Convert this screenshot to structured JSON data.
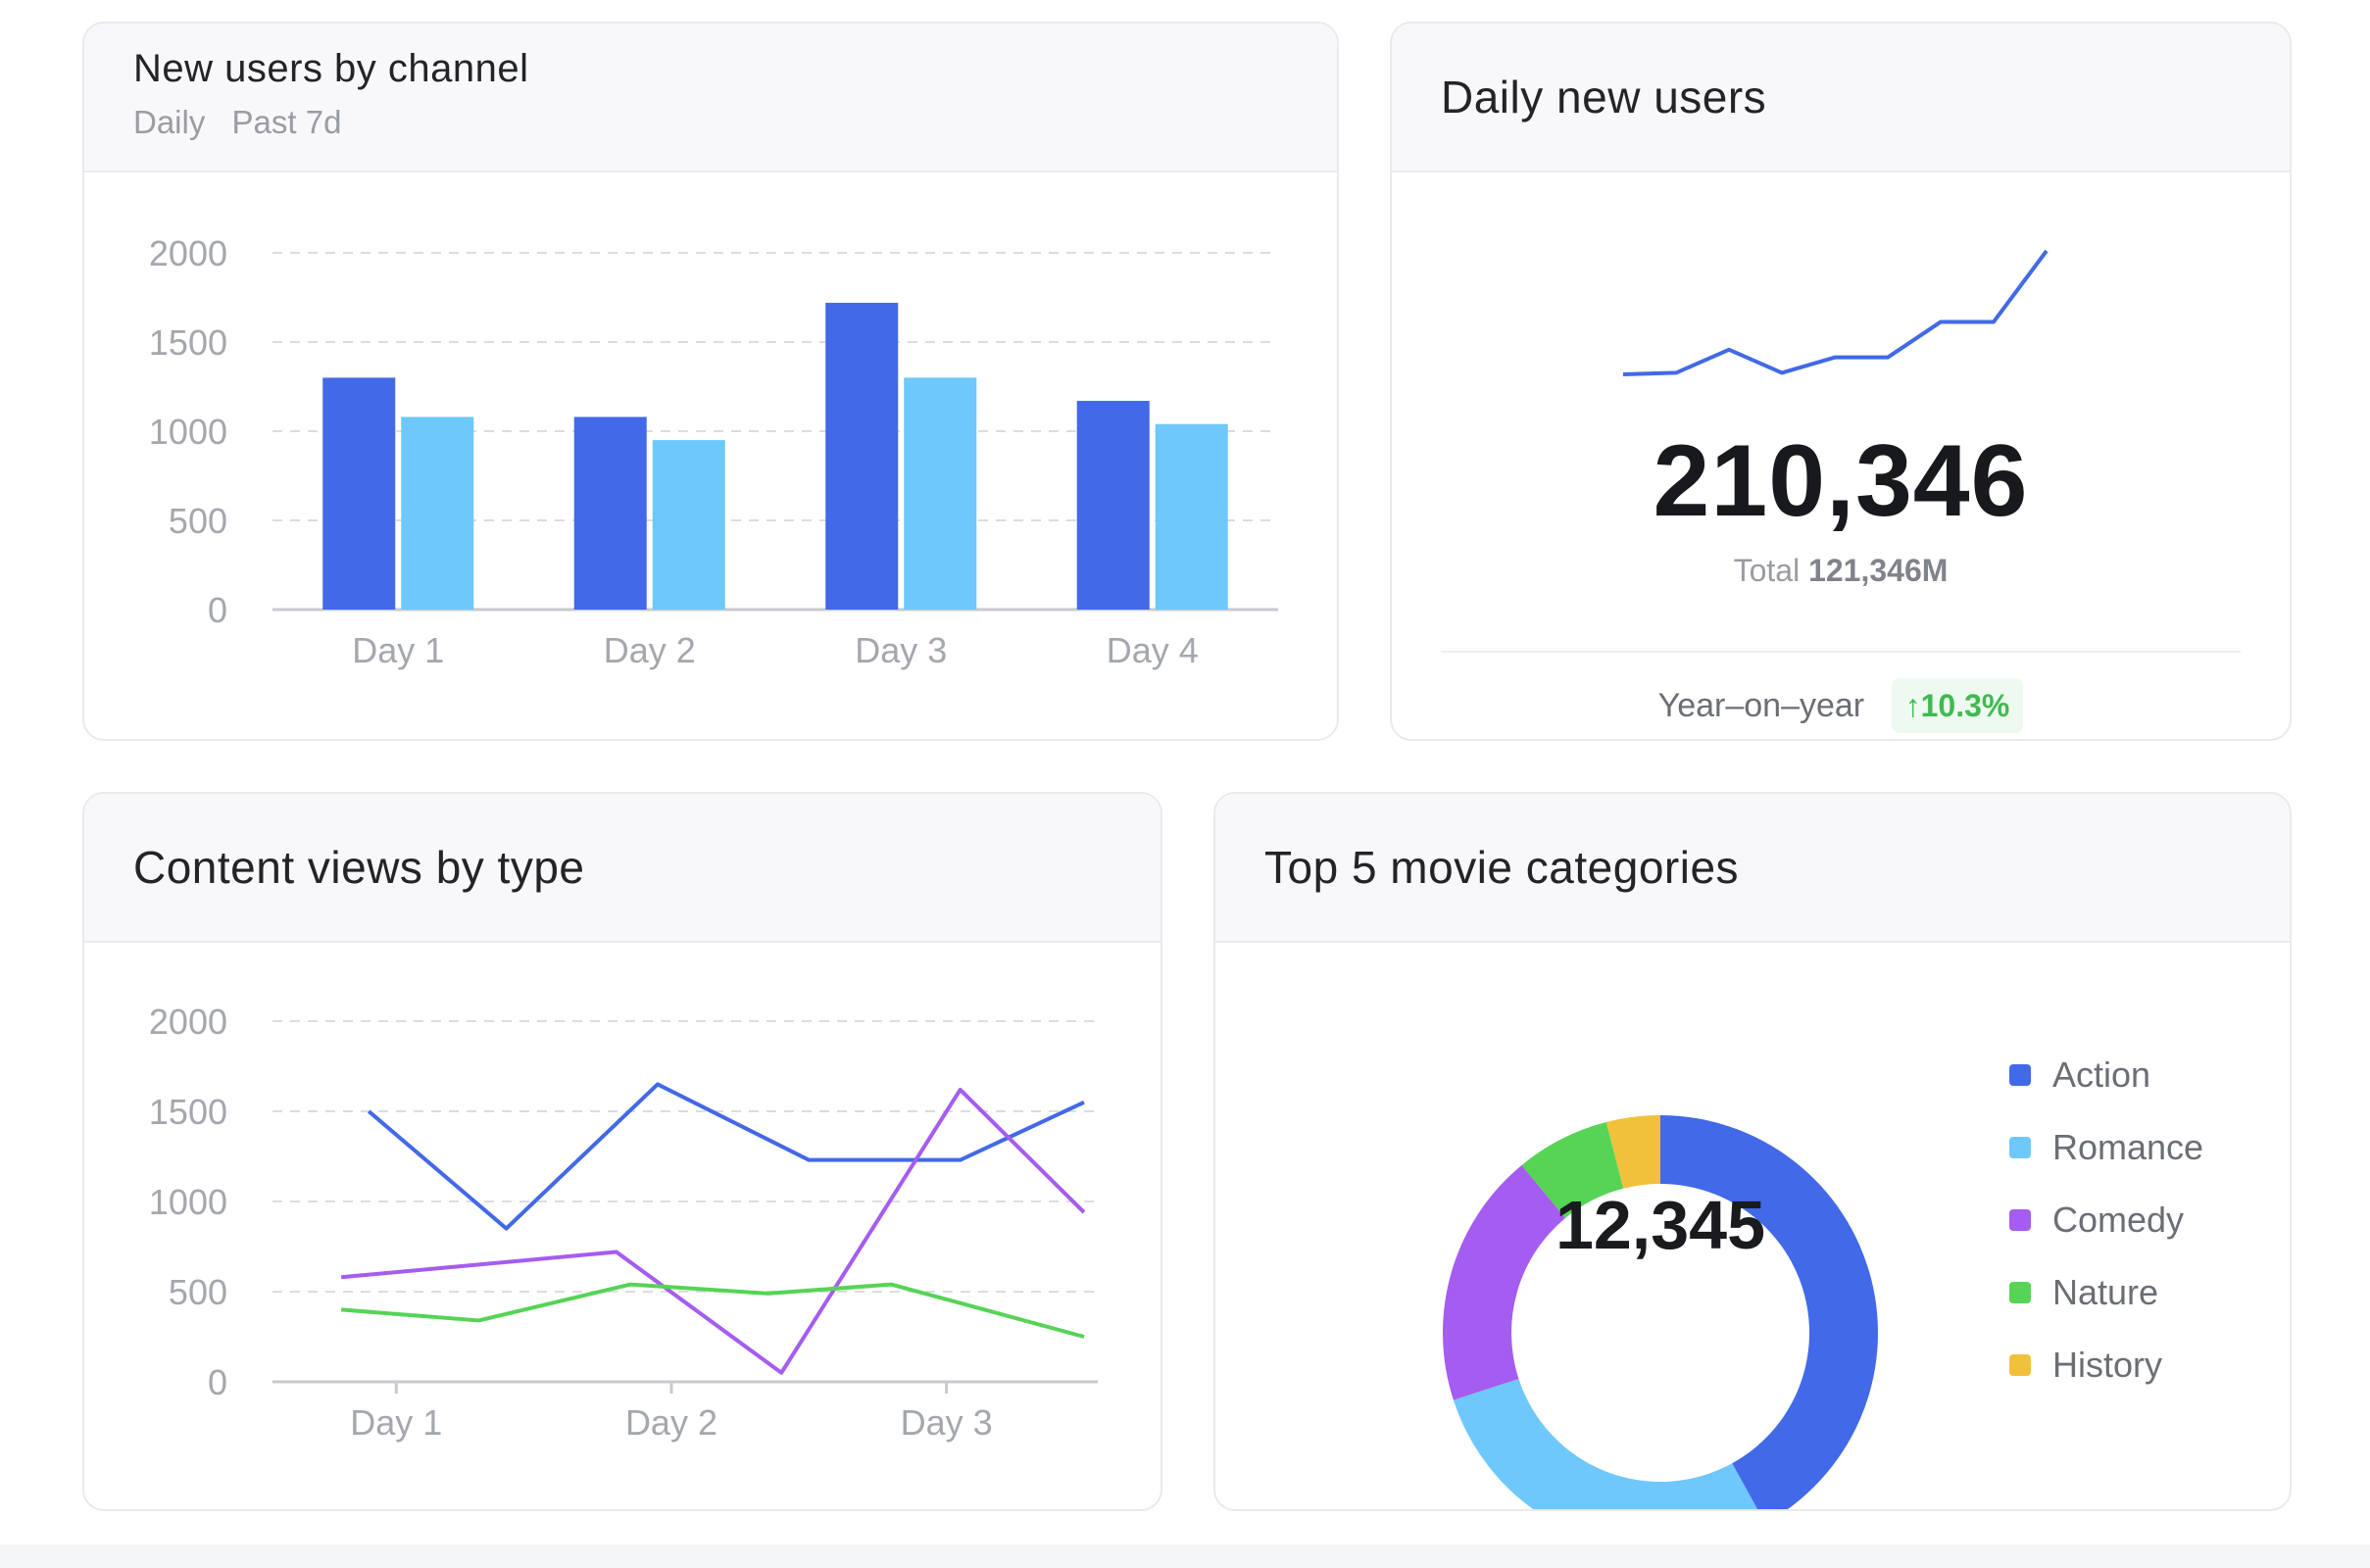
{
  "cards": {
    "channel": {
      "title": "New users by channel",
      "subtitle": [
        "Daily",
        "Past 7d"
      ]
    },
    "daily": {
      "title": "Daily new users",
      "value": "210,346",
      "total_label": "Total",
      "total_value": "121,346M",
      "yoy_label": "Year–on–year",
      "yoy_value": "10.3%"
    },
    "content": {
      "title": "Content views by type"
    },
    "movies": {
      "title": "Top 5 movie categories",
      "center_value": "12,345"
    }
  },
  "colors": {
    "blue": "#4169e8",
    "lightblue": "#6ec8fb",
    "purple": "#a55cf0",
    "green": "#55d455",
    "yellow": "#f2c13c",
    "up": "#3fba4f"
  },
  "chart_data": [
    {
      "type": "bar",
      "categories": [
        "Day 1",
        "Day 2",
        "Day 3",
        "Day 4"
      ],
      "series": [
        {
          "values": [
            1300,
            1080,
            1720,
            1170
          ]
        },
        {
          "values": [
            1080,
            950,
            1300,
            1040
          ]
        }
      ],
      "ylim": [
        0,
        2000
      ],
      "yticks": [
        0,
        500,
        1000,
        1500,
        2000
      ],
      "grid": true
    },
    {
      "type": "line",
      "values": [
        1300,
        1310,
        1460,
        1310,
        1410,
        1410,
        1640,
        1640,
        2100
      ],
      "axes": false
    },
    {
      "type": "line",
      "x_ticks": [
        "Day 1",
        "Day 2",
        "Day 3"
      ],
      "ylim": [
        0,
        2000
      ],
      "yticks": [
        0,
        500,
        1000,
        1500,
        2000
      ],
      "grid": true,
      "series": [
        {
          "color": "blue",
          "x": [
            0.35,
            0.85,
            1.4,
            1.95,
            2.5,
            2.95
          ],
          "y": [
            1500,
            850,
            1650,
            1230,
            1230,
            1550
          ]
        },
        {
          "color": "purple",
          "x": [
            0.25,
            1.25,
            1.85,
            2.5,
            2.95
          ],
          "y": [
            580,
            720,
            50,
            1620,
            940
          ]
        },
        {
          "color": "green",
          "x": [
            0.25,
            0.75,
            1.3,
            1.8,
            2.25,
            2.95
          ],
          "y": [
            400,
            340,
            540,
            490,
            540,
            250
          ]
        }
      ]
    },
    {
      "type": "pie",
      "labels": [
        "Action",
        "Romance",
        "Comedy",
        "Nature",
        "History"
      ],
      "values": [
        42,
        28,
        19,
        7,
        4
      ],
      "colors": [
        "blue",
        "lightblue",
        "purple",
        "green",
        "yellow"
      ],
      "center_label": "12,345",
      "legend": "right"
    }
  ]
}
